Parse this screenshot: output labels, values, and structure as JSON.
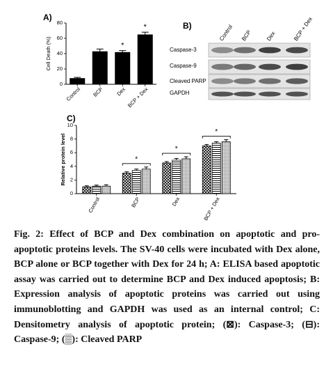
{
  "chart_data": [
    {
      "type": "bar",
      "panel_label": "A)",
      "ylabel": "Cell Death (%)",
      "categories": [
        "Control",
        "BCP",
        "Dex",
        "BCP + Dex"
      ],
      "values": [
        8,
        43,
        42,
        65
      ],
      "errors": [
        1,
        3,
        2,
        3
      ],
      "color": "#000000",
      "ylim": [
        0,
        80
      ],
      "yticks": [
        0,
        20,
        40,
        60,
        80
      ],
      "annotations": [
        {
          "text": "*",
          "category": "Dex"
        },
        {
          "text": "*",
          "category": "BCP + Dex"
        }
      ]
    },
    {
      "type": "grouped_bar",
      "panel_label": "C)",
      "ylabel": "Relative protein level",
      "categories": [
        "Control",
        "BCP",
        "Dex",
        "BCP + Dex"
      ],
      "series": [
        {
          "pattern": "crosshatch",
          "values": [
            1.0,
            3.0,
            4.5,
            7.0
          ],
          "errors": [
            0.15,
            0.2,
            0.2,
            0.2
          ]
        },
        {
          "pattern": "hstripes",
          "values": [
            1.1,
            3.4,
            4.9,
            7.4
          ],
          "errors": [
            0.15,
            0.2,
            0.25,
            0.2
          ]
        },
        {
          "pattern": "dots",
          "values": [
            1.1,
            3.6,
            5.1,
            7.6
          ],
          "errors": [
            0.2,
            0.3,
            0.3,
            0.3
          ]
        }
      ],
      "ylim": [
        0,
        10
      ],
      "yticks": [
        0,
        2,
        4,
        6,
        8,
        10
      ],
      "annotations": [
        {
          "text": "*",
          "category": "BCP"
        },
        {
          "text": "*",
          "category": "Dex"
        },
        {
          "text": "*",
          "category": "BCP + Dex"
        }
      ]
    }
  ],
  "blot": {
    "panel_label": "B)",
    "lanes": [
      "Control",
      "BCP",
      "Dex",
      "BCP + Dex"
    ],
    "rows": [
      "Caspase-3",
      "Caspase-9",
      "Cleaved PARP",
      "GAPDH"
    ]
  },
  "caption": "Fig. 2: Effect of BCP and Dex combination on apoptotic and pro-apoptotic proteins levels. The SV-40 cells were incubated with Dex alone, BCP alone or BCP together with Dex for 24 h; A: ELISA based apoptotic assay was carried out to determine BCP and Dex induced apoptosis; B: Expression analysis of apoptotic proteins was carried out using immunoblotting and GAPDH was used as an internal control; C: Densitometry analysis of apoptotic protein; (⊠): Caspase-3; (⊟): Caspase-9; (▒): Cleaved PARP"
}
